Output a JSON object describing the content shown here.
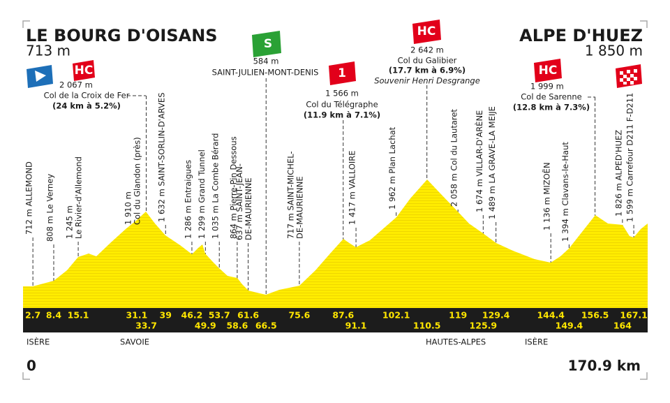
{
  "start": {
    "name": "LE BOURG D'OISANS",
    "altitude": "713 m"
  },
  "finish": {
    "name": "ALPE D'HUEZ",
    "altitude": "1 850 m"
  },
  "sprint": {
    "category": "S",
    "altitude": "584 m",
    "name": "SAINT-JULIEN-MONT-DENIS"
  },
  "climbs": [
    {
      "category": "HC",
      "altitude": "2 067 m",
      "name": "Col de la Croix de Fer",
      "detail": "(24 km à 5.2%)"
    },
    {
      "category": "1",
      "altitude": "1 566 m",
      "name": "Col du Télégraphe",
      "detail": "(11.9 km à 7.1%)"
    },
    {
      "category": "HC",
      "altitude": "2 642 m",
      "name": "Col du Galibier",
      "detail": "(17.7 km à 6.9%)",
      "note": "Souvenir Henri Desgrange"
    },
    {
      "category": "HC",
      "altitude": "1 999 m",
      "name": "Col de Sarenne",
      "detail": "(12.8 km à 7.3%)"
    }
  ],
  "waypoints": [
    {
      "km": 2.7,
      "label": [
        "712 m ALLEMOND"
      ]
    },
    {
      "km": 8.4,
      "label": [
        "808 m Le Verney"
      ]
    },
    {
      "km": 15.1,
      "label": [
        "1 245 m",
        "Le Rivier-d'Allemond"
      ]
    },
    {
      "km": 31.1,
      "label": [
        "1 910 m",
        "Col du Glandon (près)"
      ]
    },
    {
      "km": 33.7
    },
    {
      "km": 39,
      "label": [
        "1 632 m SAINT-SORLIN-D'ARVES"
      ]
    },
    {
      "km": 46.2,
      "label": [
        "1 286 m Entraigues"
      ]
    },
    {
      "km": 49.9,
      "label": [
        "1 299 m Grand Tunnel"
      ]
    },
    {
      "km": 53.7,
      "label": [
        "1 035 m La Combe Bérard"
      ]
    },
    {
      "km": 58.6,
      "label": [
        "864 m Pierre-Pin Dessous"
      ]
    },
    {
      "km": 61.6,
      "label": [
        "637 m SAINT-JEAN-",
        "DE-MAURIENNE"
      ]
    },
    {
      "km": 66.5
    },
    {
      "km": 75.6,
      "label": [
        "717 m SAINT-MICHEL-",
        "DE-MAURIENNE"
      ]
    },
    {
      "km": 87.6
    },
    {
      "km": 91.1,
      "label": [
        "1 417 m VALLOIRE"
      ]
    },
    {
      "km": 102.1,
      "label": [
        "1 962 m Plan Lachat"
      ]
    },
    {
      "km": 110.5
    },
    {
      "km": 119,
      "label": [
        "2 058 m Col du Lautaret"
      ]
    },
    {
      "km": 125.9,
      "label": [
        "1 674 m VILLAR-D'ARÈNE"
      ]
    },
    {
      "km": 129.4,
      "label": [
        "1 489 m LA GRAVE-LA MEIJE"
      ]
    },
    {
      "km": 144.4,
      "label": [
        "1 136 m MIZOËN"
      ]
    },
    {
      "km": 149.4,
      "label": [
        "1 394 m Clavans-le-Haut"
      ]
    },
    {
      "km": 156.5
    },
    {
      "km": 164,
      "label": [
        "1 826 m ALPED'HUEZ"
      ]
    },
    {
      "km": 167.1,
      "label": [
        "1 599 m Carrefour D211 F-D211"
      ]
    }
  ],
  "regions": [
    "ISÈRE",
    "SAVOIE",
    "HAUTES-ALPES",
    "ISÈRE"
  ],
  "distance": {
    "start": 0,
    "end": {
      "value": 170.9,
      "label": "170.9 km"
    }
  }
}
